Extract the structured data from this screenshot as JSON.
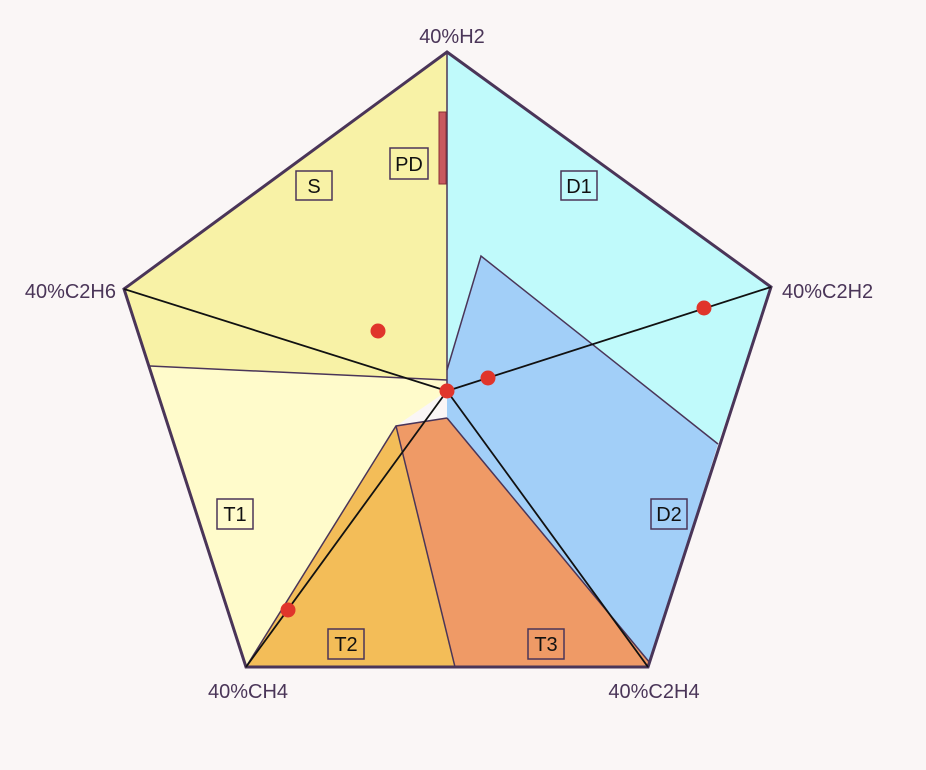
{
  "vertices": {
    "h2": "40%H2",
    "c2h2": "40%C2H2",
    "c2h4": "40%C2H4",
    "ch4": "40%CH4",
    "c2h6": "40%C2H6"
  },
  "zones": {
    "s": "S",
    "pd": "PD",
    "d1": "D1",
    "d2": "D2",
    "t1": "T1",
    "t2": "T2",
    "t3": "T3"
  },
  "colors": {
    "s": "#f8f2a6",
    "pd": "#c8585e",
    "d1": "#c0fafb",
    "d2": "#a2cff8",
    "t1": "#fffbcb",
    "t2": "#f3bd58",
    "t3": "#ef9a66",
    "outline": "#4a3558",
    "marker": "#e0352b"
  }
}
